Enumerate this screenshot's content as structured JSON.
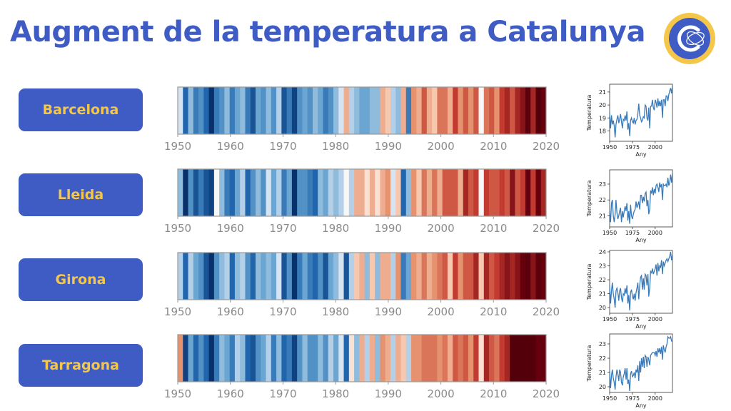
{
  "title": "Augment de la temperatura a Catalunya",
  "colors": {
    "title": "#3f5cc4",
    "button_bg": "#3f5cc4",
    "button_text": "#f4c74a",
    "logo_ring": "#f4c74a",
    "logo_fill": "#3f5cc4",
    "line": "#3a7ab8"
  },
  "chart_data": [
    {
      "type": "heatmap",
      "name": "Barcelona",
      "x_ticks": [
        "1950",
        "1960",
        "1970",
        "1980",
        "1990",
        "2000",
        "2010",
        "2020"
      ],
      "xlim": [
        1950,
        2020
      ],
      "years": [
        1950,
        2020
      ],
      "anomaly": [
        -0.1,
        -0.7,
        -0.3,
        -0.6,
        -0.5,
        -0.7,
        -1.0,
        -0.6,
        -0.5,
        -0.3,
        -0.6,
        -0.4,
        -0.3,
        -0.6,
        -0.8,
        -0.4,
        -0.5,
        -0.3,
        -0.5,
        -0.2,
        -0.8,
        -0.6,
        -0.9,
        -0.5,
        -0.4,
        -0.5,
        -0.3,
        -0.4,
        -0.6,
        -0.5,
        -0.3,
        -0.1,
        0.3,
        -0.2,
        -0.3,
        -0.4,
        -0.4,
        -0.3,
        -0.3,
        0.3,
        0.2,
        -0.2,
        -0.3,
        0.3,
        -0.6,
        0.4,
        0.3,
        0.6,
        0.3,
        0.2,
        0.5,
        0.5,
        0.3,
        0.7,
        0.4,
        0.6,
        0.4,
        0.6,
        0.0,
        0.5,
        0.6,
        0.4,
        0.7,
        0.8,
        0.6,
        0.8,
        0.9,
        1.1,
        0.8,
        1.2,
        1.0
      ]
    },
    {
      "type": "heatmap",
      "name": "Lleida",
      "x_ticks": [
        "1950",
        "1960",
        "1970",
        "1980",
        "1990",
        "2000",
        "2010",
        "2020"
      ],
      "xlim": [
        1950,
        2020
      ],
      "anomaly": [
        -0.3,
        -1.1,
        -0.5,
        -0.8,
        -0.6,
        -0.8,
        -0.9,
        0.0,
        -0.3,
        -0.6,
        -0.7,
        -0.4,
        -0.2,
        -0.7,
        -0.5,
        -0.3,
        -0.5,
        -0.1,
        -0.4,
        -0.2,
        -0.6,
        -0.4,
        -1.0,
        -0.5,
        -0.5,
        -0.6,
        -0.7,
        -0.3,
        -0.4,
        -0.2,
        -0.3,
        -0.2,
        0.0,
        -0.2,
        0.3,
        0.3,
        0.1,
        0.3,
        0.1,
        0.3,
        0.4,
        -0.1,
        0.2,
        -0.7,
        -0.3,
        0.4,
        0.2,
        0.5,
        0.3,
        0.5,
        0.3,
        0.6,
        0.6,
        0.6,
        0.3,
        0.8,
        0.6,
        0.7,
        0.0,
        0.7,
        0.6,
        0.6,
        0.7,
        0.6,
        0.9,
        0.6,
        0.7,
        1.0,
        0.7,
        1.0,
        0.8
      ]
    },
    {
      "type": "heatmap",
      "name": "Girona",
      "x_ticks": [
        "1950",
        "1960",
        "1970",
        "1980",
        "1990",
        "2000",
        "2010",
        "2020"
      ],
      "xlim": [
        1950,
        2020
      ],
      "anomaly": [
        -0.2,
        -0.7,
        -0.2,
        -0.4,
        -0.5,
        -0.8,
        -1.0,
        -0.5,
        -0.3,
        -0.2,
        -0.7,
        -0.3,
        -0.2,
        -0.5,
        -0.7,
        -0.3,
        -0.4,
        -0.3,
        -0.4,
        -0.1,
        -0.8,
        -0.5,
        -1.0,
        -0.6,
        -0.4,
        -0.6,
        -0.7,
        -0.5,
        -0.8,
        -0.4,
        -0.3,
        -0.1,
        -0.8,
        -0.2,
        0.2,
        0.3,
        -0.3,
        0.2,
        -0.3,
        0.3,
        0.3,
        -0.2,
        0.4,
        -0.6,
        -0.4,
        0.4,
        0.3,
        0.5,
        0.3,
        0.4,
        0.5,
        0.6,
        0.2,
        0.7,
        0.4,
        0.6,
        0.6,
        0.8,
        0.2,
        0.8,
        0.6,
        0.7,
        0.8,
        0.9,
        0.8,
        0.9,
        1.0,
        1.1,
        0.9,
        1.1,
        1.0
      ]
    },
    {
      "type": "heatmap",
      "name": "Tarragona",
      "x_ticks": [
        "1950",
        "1960",
        "1970",
        "1980",
        "1990",
        "2000",
        "2010",
        "2020"
      ],
      "xlim": [
        1950,
        2020
      ],
      "anomaly": [
        0.4,
        -0.9,
        -0.4,
        -0.7,
        -0.5,
        -0.7,
        -1.0,
        -0.6,
        -0.3,
        -0.4,
        -0.6,
        -0.2,
        -0.3,
        -0.7,
        -0.8,
        -0.5,
        -0.4,
        -0.2,
        -0.6,
        -0.3,
        -0.7,
        -0.6,
        -0.9,
        -0.5,
        -0.3,
        -0.5,
        -0.5,
        -0.3,
        -0.5,
        -0.2,
        -0.4,
        -0.1,
        -0.7,
        0.1,
        -0.3,
        0.3,
        -0.2,
        0.3,
        -0.3,
        0.4,
        0.3,
        -0.2,
        0.3,
        0.2,
        -0.2,
        0.4,
        0.4,
        0.5,
        0.5,
        0.5,
        0.4,
        0.5,
        0.3,
        0.6,
        0.5,
        0.6,
        0.4,
        0.7,
        0.1,
        0.8,
        0.6,
        0.5,
        0.7,
        0.8,
        1.2,
        1.2,
        1.2,
        1.2,
        1.2,
        1.0,
        1.0
      ]
    },
    {
      "type": "line",
      "name": "Barcelona",
      "xlabel": "Any",
      "ylabel": "Temperatura",
      "xlim": [
        1950,
        2019
      ],
      "ylim": [
        17.2,
        21.6
      ],
      "x_ticks": [
        1950,
        1975,
        2000
      ],
      "y_ticks": [
        18,
        19,
        20,
        21
      ],
      "x_start": 1950,
      "values": [
        19.4,
        18.2,
        19.2,
        18.5,
        18.8,
        18.4,
        17.5,
        18.5,
        18.9,
        19.2,
        18.6,
        18.9,
        19.3,
        18.7,
        18.2,
        18.9,
        18.8,
        19.2,
        18.8,
        19.5,
        18.1,
        18.6,
        17.6,
        18.8,
        19.0,
        18.7,
        18.6,
        19.0,
        18.5,
        18.8,
        18.9,
        19.3,
        20.1,
        19.2,
        19.0,
        18.7,
        18.8,
        19.1,
        19.0,
        20.0,
        19.9,
        19.0,
        18.8,
        19.8,
        18.2,
        19.9,
        19.9,
        20.4,
        19.8,
        19.6,
        20.4,
        20.2,
        19.8,
        20.5,
        19.9,
        20.3,
        19.9,
        20.4,
        19.0,
        20.4,
        20.4,
        19.9,
        20.7,
        20.7,
        20.3,
        20.8,
        21.1,
        21.3,
        20.9,
        21.5
      ]
    },
    {
      "type": "line",
      "name": "Lleida",
      "xlabel": "Any",
      "ylabel": "Temperatura",
      "xlim": [
        1950,
        2019
      ],
      "ylim": [
        20.3,
        23.9
      ],
      "x_ticks": [
        1950,
        1975,
        2000
      ],
      "y_ticks": [
        21,
        22,
        23
      ],
      "x_start": 1950,
      "values": [
        21.3,
        20.6,
        21.8,
        22.0,
        21.0,
        20.6,
        21.1,
        22.0,
        21.2,
        20.8,
        21.0,
        21.3,
        21.5,
        20.6,
        21.3,
        20.9,
        21.3,
        21.6,
        21.3,
        21.8,
        20.7,
        21.3,
        20.5,
        21.7,
        21.0,
        20.8,
        21.1,
        21.3,
        21.4,
        21.9,
        21.5,
        21.7,
        21.9,
        21.4,
        22.3,
        22.3,
        21.8,
        22.2,
        21.9,
        22.4,
        22.5,
        21.6,
        22.0,
        21.1,
        21.4,
        22.6,
        22.4,
        22.8,
        22.3,
        22.7,
        22.4,
        22.9,
        23.0,
        22.8,
        22.5,
        23.1,
        22.8,
        23.0,
        22.0,
        23.0,
        22.9,
        22.9,
        23.0,
        22.8,
        23.4,
        22.9,
        23.1,
        23.6,
        23.1,
        23.7
      ]
    },
    {
      "type": "line",
      "name": "Girona",
      "xlabel": "Any",
      "ylabel": "Temperatura",
      "xlim": [
        1950,
        2019
      ],
      "ylim": [
        19.6,
        24.1
      ],
      "x_ticks": [
        1950,
        1975,
        2000
      ],
      "y_ticks": [
        20,
        21,
        22,
        23,
        24
      ],
      "x_start": 1950,
      "values": [
        21.6,
        20.3,
        21.2,
        21.8,
        21.0,
        20.6,
        20.0,
        21.2,
        21.4,
        21.1,
        20.5,
        21.2,
        21.4,
        20.7,
        20.4,
        21.0,
        20.9,
        21.4,
        21.0,
        21.6,
        20.3,
        20.9,
        19.8,
        21.1,
        21.3,
        20.8,
        20.6,
        21.0,
        20.5,
        21.1,
        21.4,
        21.8,
        20.6,
        21.6,
        22.2,
        22.3,
        21.3,
        22.1,
        21.3,
        22.4,
        22.3,
        21.6,
        22.4,
        20.8,
        21.4,
        22.6,
        22.5,
        22.8,
        22.4,
        22.6,
        22.8,
        23.1,
        22.3,
        23.2,
        22.6,
        23.0,
        22.9,
        23.4,
        22.4,
        23.3,
        23.0,
        23.2,
        23.4,
        23.5,
        23.3,
        23.5,
        23.7,
        24.0,
        23.4,
        23.8
      ]
    },
    {
      "type": "line",
      "name": "Tarragona",
      "xlabel": "Any",
      "ylabel": "Temperatura",
      "xlim": [
        1950,
        2019
      ],
      "ylim": [
        19.6,
        23.7
      ],
      "x_ticks": [
        1950,
        1975,
        2000
      ],
      "y_ticks": [
        20,
        21,
        22,
        23
      ],
      "x_start": 1950,
      "values": [
        21.1,
        19.9,
        20.8,
        21.2,
        20.6,
        20.3,
        19.8,
        20.7,
        21.2,
        20.9,
        20.4,
        21.2,
        21.0,
        20.3,
        20.1,
        20.7,
        20.9,
        21.3,
        20.5,
        21.3,
        20.2,
        20.5,
        19.7,
        20.9,
        21.1,
        20.7,
        20.8,
        21.0,
        20.6,
        21.2,
        21.0,
        21.5,
        20.4,
        21.8,
        21.0,
        22.0,
        21.4,
        22.1,
        21.3,
        22.2,
        22.1,
        21.4,
        22.1,
        21.9,
        21.5,
        22.2,
        22.3,
        22.4,
        22.4,
        22.4,
        22.2,
        22.5,
        22.1,
        22.7,
        22.4,
        22.7,
        22.3,
        22.8,
        21.9,
        22.9,
        22.6,
        22.4,
        22.8,
        23.0,
        23.5,
        23.4,
        23.4,
        23.5,
        23.2,
        23.2
      ]
    }
  ],
  "cities": [
    {
      "label": "Barcelona"
    },
    {
      "label": "Lleida"
    },
    {
      "label": "Girona"
    },
    {
      "label": "Tarragona"
    }
  ]
}
